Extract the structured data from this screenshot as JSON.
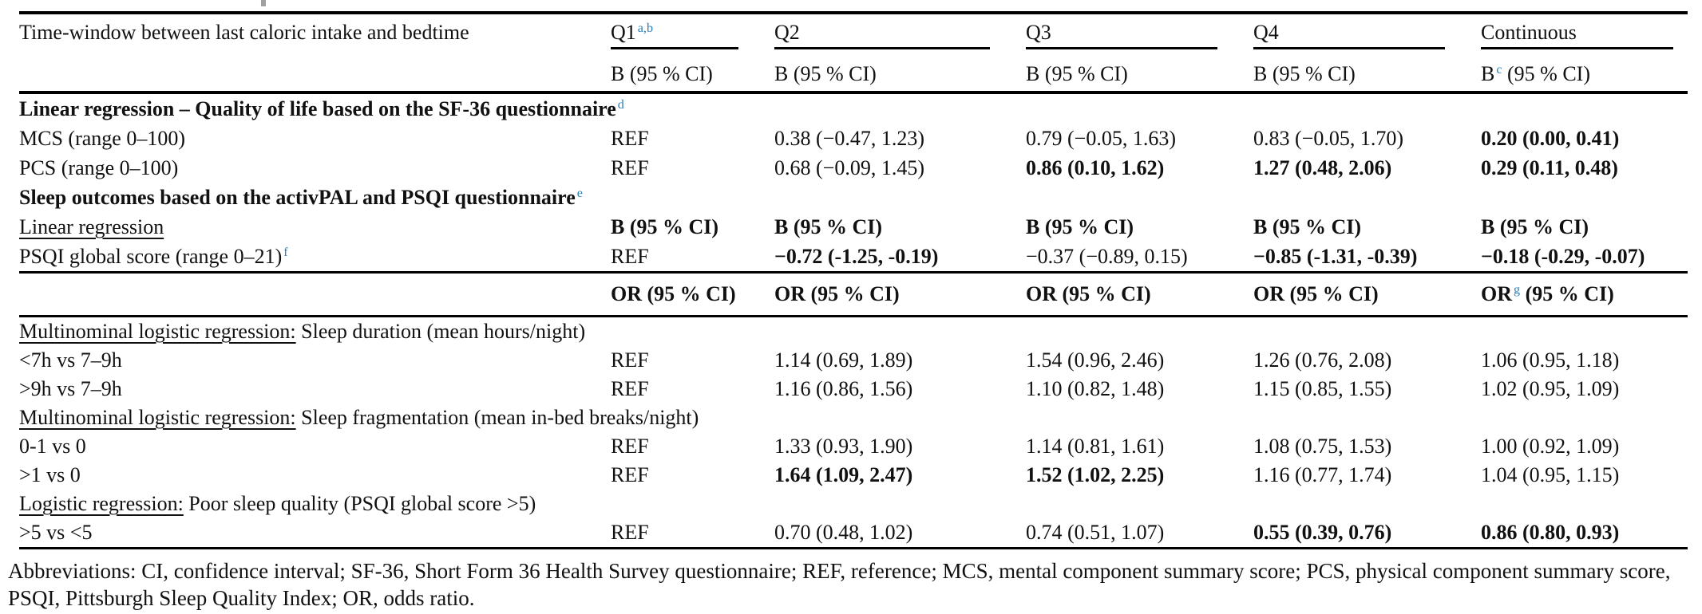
{
  "palette": {
    "text": "#111111",
    "footnote_marker_blue": "#2e7fb5",
    "rule": "#000000",
    "background": "#ffffff"
  },
  "table": {
    "row_label_header": "Time-window between last caloric intake and bedtime",
    "columns": [
      {
        "parts": [
          {
            "t": "Q1"
          },
          {
            "t": "a,b",
            "sup": true
          }
        ]
      },
      {
        "parts": [
          {
            "t": "Q2"
          }
        ]
      },
      {
        "parts": [
          {
            "t": "Q3"
          }
        ]
      },
      {
        "parts": [
          {
            "t": "Q4"
          }
        ]
      },
      {
        "parts": [
          {
            "t": "Continuous"
          }
        ]
      }
    ],
    "sub_headers": [
      [
        {
          "t": "B (95 % CI)"
        }
      ],
      [
        {
          "t": "B (95 % CI)"
        }
      ],
      [
        {
          "t": "B (95 % CI)"
        }
      ],
      [
        {
          "t": "B (95 % CI)"
        }
      ],
      [
        {
          "t": "B"
        },
        {
          "t": "c",
          "sup": true
        },
        {
          "t": " (95 % CI)"
        }
      ]
    ],
    "rows": [
      {
        "kind": "section",
        "parts": [
          {
            "t": "Linear regression – Quality of life based on the SF-36 questionnaire",
            "b": true
          },
          {
            "t": "d",
            "sup": true
          }
        ]
      },
      {
        "kind": "data",
        "label": [
          {
            "t": "MCS (range 0–100)"
          }
        ],
        "cells": [
          [
            {
              "t": "REF"
            }
          ],
          [
            {
              "t": "0.38 (−0.47, 1.23)"
            }
          ],
          [
            {
              "t": "0.79 (−0.05, 1.63)"
            }
          ],
          [
            {
              "t": "0.83 (−0.05, 1.70)"
            }
          ],
          [
            {
              "t": "0.20 (0.00, 0.41)",
              "b": true
            }
          ]
        ]
      },
      {
        "kind": "data",
        "label": [
          {
            "t": "PCS (range 0–100)"
          }
        ],
        "cells": [
          [
            {
              "t": "REF"
            }
          ],
          [
            {
              "t": "0.68 (−0.09, 1.45)"
            }
          ],
          [
            {
              "t": "0.86 (0.10, 1.62)",
              "b": true
            }
          ],
          [
            {
              "t": "1.27 (0.48, 2.06)",
              "b": true
            }
          ],
          [
            {
              "t": "0.29 (0.11, 0.48)",
              "b": true
            }
          ]
        ]
      },
      {
        "kind": "section",
        "parts": [
          {
            "t": "Sleep outcomes based on the activPAL and PSQI questionnaire",
            "b": true
          },
          {
            "t": "e",
            "sup": true
          }
        ]
      },
      {
        "kind": "data",
        "label": [
          {
            "t": "Linear regression",
            "u": true
          }
        ],
        "cells": [
          [
            {
              "t": "B (95 % CI)",
              "b": true
            }
          ],
          [
            {
              "t": "B (95 % CI)",
              "b": true
            }
          ],
          [
            {
              "t": "B (95 % CI)",
              "b": true
            }
          ],
          [
            {
              "t": "B (95 % CI)",
              "b": true
            }
          ],
          [
            {
              "t": "B (95 % CI)",
              "b": true
            }
          ]
        ]
      },
      {
        "kind": "data",
        "label": [
          {
            "t": "PSQI global score (range 0–21)"
          },
          {
            "t": "f",
            "sup": true
          }
        ],
        "cells": [
          [
            {
              "t": "REF"
            }
          ],
          [
            {
              "t": "−0.72 (-1.25, -0.19)",
              "b": true
            }
          ],
          [
            {
              "t": "−0.37 (−0.89, 0.15)"
            }
          ],
          [
            {
              "t": "−0.85 (-1.31, -0.39)",
              "b": true
            }
          ],
          [
            {
              "t": "−0.18 (-0.29, -0.07)",
              "b": true
            }
          ]
        ]
      },
      {
        "kind": "rule"
      },
      {
        "kind": "orhead",
        "label": [],
        "cells": [
          [
            {
              "t": "OR (95 % CI)",
              "b": true
            }
          ],
          [
            {
              "t": "OR (95 % CI)",
              "b": true
            }
          ],
          [
            {
              "t": "OR (95 % CI)",
              "b": true
            }
          ],
          [
            {
              "t": "OR (95 % CI)",
              "b": true
            }
          ],
          [
            {
              "t": "OR",
              "b": true
            },
            {
              "t": "g",
              "sup": true
            },
            {
              "t": " (95 % CI)",
              "b": true
            }
          ]
        ]
      },
      {
        "kind": "rule"
      },
      {
        "kind": "section2",
        "parts": [
          {
            "t": "Multinominal logistic regression:",
            "u": true
          },
          {
            "t": " Sleep duration (mean hours/night)"
          }
        ]
      },
      {
        "kind": "data2",
        "label": [
          {
            "t": "<7h vs 7–9h"
          }
        ],
        "cells": [
          [
            {
              "t": "REF"
            }
          ],
          [
            {
              "t": "1.14 (0.69, 1.89)"
            }
          ],
          [
            {
              "t": "1.54 (0.96, 2.46)"
            }
          ],
          [
            {
              "t": "1.26 (0.76, 2.08)"
            }
          ],
          [
            {
              "t": "1.06 (0.95, 1.18)"
            }
          ]
        ]
      },
      {
        "kind": "data2",
        "label": [
          {
            "t": ">9h vs 7–9h"
          }
        ],
        "cells": [
          [
            {
              "t": "REF"
            }
          ],
          [
            {
              "t": "1.16 (0.86, 1.56)"
            }
          ],
          [
            {
              "t": "1.10 (0.82, 1.48)"
            }
          ],
          [
            {
              "t": "1.15 (0.85, 1.55)"
            }
          ],
          [
            {
              "t": "1.02 (0.95, 1.09)"
            }
          ]
        ]
      },
      {
        "kind": "section2",
        "parts": [
          {
            "t": "Multinominal logistic regression:",
            "u": true
          },
          {
            "t": " Sleep fragmentation (mean in-bed breaks/night)"
          }
        ]
      },
      {
        "kind": "data2",
        "label": [
          {
            "t": "0-1 vs 0"
          }
        ],
        "cells": [
          [
            {
              "t": "REF"
            }
          ],
          [
            {
              "t": "1.33 (0.93, 1.90)"
            }
          ],
          [
            {
              "t": "1.14 (0.81, 1.61)"
            }
          ],
          [
            {
              "t": "1.08 (0.75, 1.53)"
            }
          ],
          [
            {
              "t": "1.00 (0.92, 1.09)"
            }
          ]
        ]
      },
      {
        "kind": "data2",
        "label": [
          {
            "t": ">1 vs 0"
          }
        ],
        "cells": [
          [
            {
              "t": "REF"
            }
          ],
          [
            {
              "t": "1.64 (1.09, 2.47)",
              "b": true
            }
          ],
          [
            {
              "t": "1.52 (1.02, 2.25)",
              "b": true
            }
          ],
          [
            {
              "t": "1.16 (0.77, 1.74)"
            }
          ],
          [
            {
              "t": "1.04 (0.95, 1.15)"
            }
          ]
        ]
      },
      {
        "kind": "section2",
        "parts": [
          {
            "t": "Logistic regression:",
            "u": true
          },
          {
            "t": " Poor sleep quality (PSQI global score >5)"
          }
        ]
      },
      {
        "kind": "data2",
        "label": [
          {
            "t": ">5 vs <5"
          }
        ],
        "cells": [
          [
            {
              "t": "REF"
            }
          ],
          [
            {
              "t": "0.70 (0.48, 1.02)"
            }
          ],
          [
            {
              "t": "0.74 (0.51, 1.07)"
            }
          ],
          [
            {
              "t": "0.55 (0.39, 0.76)",
              "b": true
            }
          ],
          [
            {
              "t": "0.86 (0.80, 0.93)",
              "b": true
            }
          ]
        ]
      }
    ]
  },
  "footer": {
    "abbreviations": "Abbreviations: CI, confidence interval; SF-36, Short Form 36 Health Survey questionnaire; REF, reference; MCS, mental component summary score; PCS, physical component summary score, PSQI, Pittsburgh Sleep Quality Index; OR, odds ratio."
  }
}
